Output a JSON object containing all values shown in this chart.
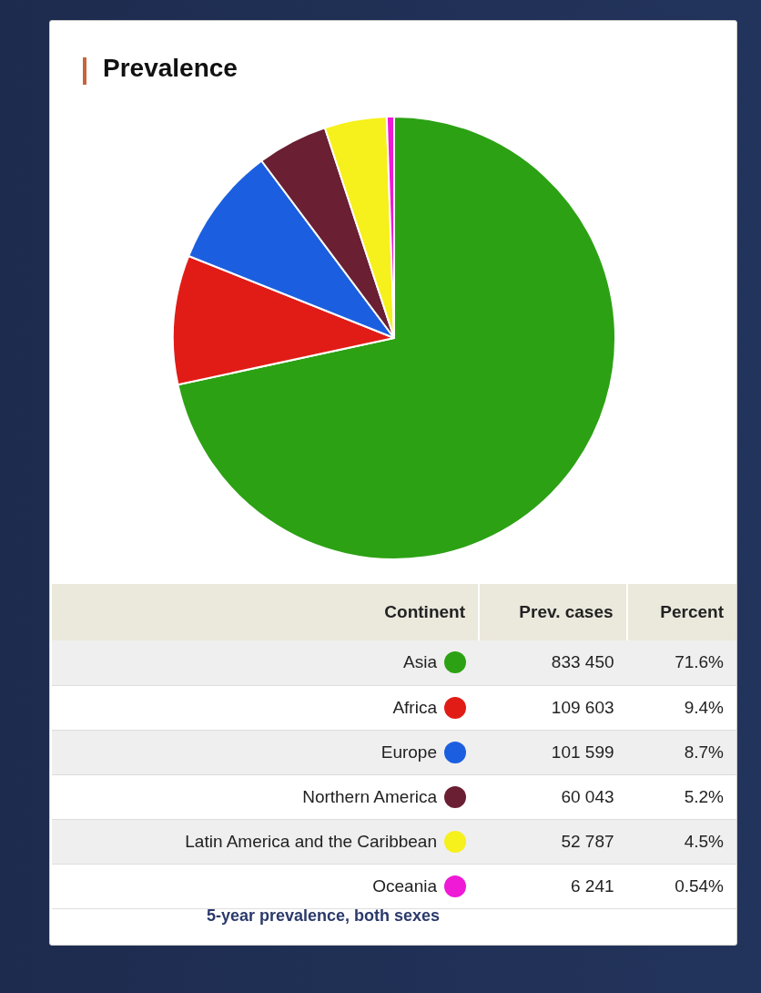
{
  "chart_data": {
    "type": "pie",
    "title": "Prevalence",
    "categories": [
      "Asia",
      "Africa",
      "Europe",
      "Northern America",
      "Latin America and the Caribbean",
      "Oceania"
    ],
    "values": [
      833450,
      109603,
      101599,
      60043,
      52787,
      6241
    ],
    "colors": [
      "#2ca114",
      "#e11c17",
      "#1b5fe0",
      "#6a1f33",
      "#f6f01c",
      "#ee1ad6"
    ],
    "value_labels": [
      "833 450",
      "109 603",
      "101 599",
      "60 043",
      "52 787",
      "6 241"
    ],
    "annotations": [
      "Continent",
      "Prev. cases",
      "Percent",
      "71.6%",
      "9.4%",
      "8.7%",
      "5.2%",
      "4.5%",
      "0.54%",
      "5-year prevalence, both sexes"
    ],
    "legend": "bottom"
  }
}
